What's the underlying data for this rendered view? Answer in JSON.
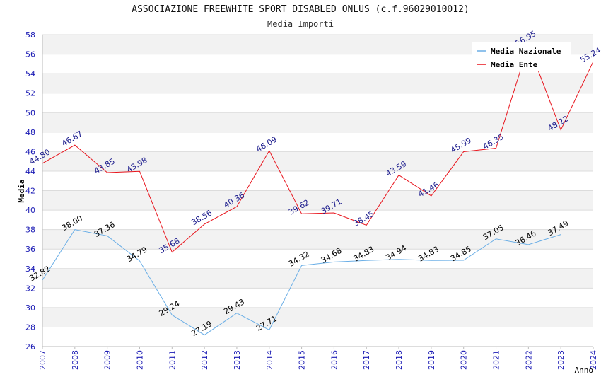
{
  "title": "ASSOCIAZIONE FREEWHITE SPORT DISABLED ONLUS (c.f.96029010012)",
  "subtitle": "Media Importi",
  "chart_data": {
    "type": "line",
    "xlabel": "Anno",
    "ylabel": "Media",
    "ylim": [
      26,
      58
    ],
    "ytick_step": 2,
    "categories": [
      "2007",
      "2008",
      "2009",
      "2010",
      "2011",
      "2012",
      "2013",
      "2014",
      "2015",
      "2016",
      "2017",
      "2018",
      "2019",
      "2020",
      "2021",
      "2022",
      "2023",
      "2024"
    ],
    "grid": true,
    "legend_position": "top-right",
    "series": [
      {
        "name": "Media Nazionale",
        "color": "#6aaee6",
        "label_color": "#000000",
        "values": [
          32.82,
          38.0,
          37.36,
          34.79,
          29.24,
          27.19,
          29.43,
          27.71,
          34.32,
          34.68,
          34.83,
          34.94,
          34.83,
          34.85,
          37.05,
          36.46,
          37.49,
          null
        ],
        "labels": [
          "32.82",
          "38.00",
          "37.36",
          "34.79",
          "29.24",
          "27.19",
          "29.43",
          "27.71",
          "34.32",
          "34.68",
          "34.83",
          "34.94",
          "34.83",
          "34.85",
          "37.05",
          "36.46",
          "37.49",
          ""
        ]
      },
      {
        "name": "Media Ente",
        "color": "#e8141c",
        "label_color": "#1a1a8c",
        "values": [
          44.8,
          46.67,
          43.85,
          43.98,
          35.68,
          38.56,
          40.36,
          46.09,
          39.62,
          39.71,
          38.45,
          43.59,
          41.46,
          45.99,
          46.35,
          56.95,
          48.22,
          55.24
        ],
        "labels": [
          "44.80",
          "46.67",
          "43.85",
          "43.98",
          "35.68",
          "38.56",
          "40.36",
          "46.09",
          "39.62",
          "39.71",
          "38.45",
          "43.59",
          "41.46",
          "45.99",
          "46.35",
          "56.95",
          "48.22",
          "55.24"
        ]
      }
    ]
  }
}
